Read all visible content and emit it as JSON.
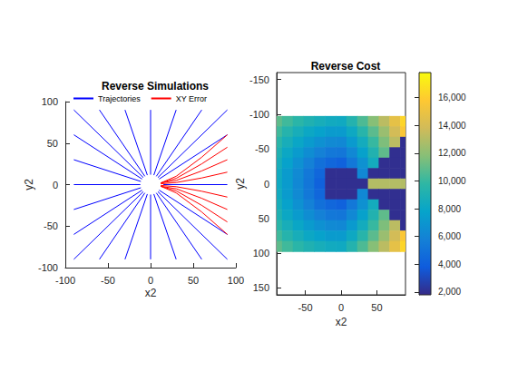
{
  "chart_data": [
    {
      "type": "line",
      "title": "Reverse Simulations",
      "x_label": "x2",
      "y_label": "y2",
      "xlim": [
        -100,
        100
      ],
      "xticks": [
        -100,
        -50,
        0,
        50,
        100
      ],
      "ylim": [
        -100,
        100
      ],
      "yticks": [
        -100,
        -50,
        0,
        50,
        100
      ],
      "legend": "top",
      "series": [
        {
          "name": "Trajectories",
          "color": "#0000ff",
          "paths": [
            [
              [
                -8.5,
                8.5
              ],
              [
                -90,
                90
              ]
            ],
            [
              [
                -6.7,
                10
              ],
              [
                -60,
                90
              ]
            ],
            [
              [
                -3.8,
                11.4
              ],
              [
                -30,
                90
              ]
            ],
            [
              [
                0,
                12
              ],
              [
                0,
                90
              ]
            ],
            [
              [
                3.8,
                11.4
              ],
              [
                30,
                90
              ]
            ],
            [
              [
                6.7,
                10
              ],
              [
                60,
                90
              ]
            ],
            [
              [
                8.5,
                8.5
              ],
              [
                90,
                90
              ]
            ],
            [
              [
                -10,
                6.7
              ],
              [
                -90,
                60
              ]
            ],
            [
              [
                -11.4,
                3.8
              ],
              [
                -90,
                30
              ]
            ],
            [
              [
                -12,
                0
              ],
              [
                -90,
                0
              ]
            ],
            [
              [
                -11.4,
                -3.8
              ],
              [
                -90,
                -30
              ]
            ],
            [
              [
                -10,
                -6.7
              ],
              [
                -90,
                -60
              ]
            ],
            [
              [
                -8.5,
                -8.5
              ],
              [
                -90,
                -90
              ]
            ],
            [
              [
                -6.7,
                -10
              ],
              [
                -60,
                -90
              ]
            ],
            [
              [
                -3.8,
                -11.4
              ],
              [
                -30,
                -90
              ]
            ],
            [
              [
                0,
                -12
              ],
              [
                0,
                -90
              ]
            ],
            [
              [
                3.8,
                -11.4
              ],
              [
                30,
                -90
              ]
            ],
            [
              [
                6.7,
                -10
              ],
              [
                60,
                -90
              ]
            ],
            [
              [
                8.5,
                -8.5
              ],
              [
                90,
                -90
              ]
            ],
            [
              [
                10,
                6.7
              ],
              [
                90,
                60
              ]
            ],
            [
              [
                10,
                -6.7
              ],
              [
                90,
                -60
              ]
            ],
            [
              [
                15,
                0
              ],
              [
                90,
                0
              ]
            ]
          ]
        },
        {
          "name": "XY Error",
          "color": "#ff0000",
          "paths": [
            [
              [
                12,
                -2
              ],
              [
                30,
                -10
              ],
              [
                60,
                -33
              ],
              [
                90,
                -60
              ]
            ],
            [
              [
                12,
                -2
              ],
              [
                30,
                -7.5
              ],
              [
                60,
                -25
              ],
              [
                90,
                -45
              ]
            ],
            [
              [
                12,
                -2
              ],
              [
                30,
                -5
              ],
              [
                60,
                -16.5
              ],
              [
                90,
                -30
              ]
            ],
            [
              [
                12,
                -1
              ],
              [
                30,
                -2.5
              ],
              [
                60,
                -8
              ],
              [
                90,
                -15
              ]
            ],
            [
              [
                12,
                1
              ],
              [
                30,
                2.5
              ],
              [
                60,
                8
              ],
              [
                90,
                15
              ]
            ],
            [
              [
                12,
                2
              ],
              [
                30,
                5
              ],
              [
                60,
                16.5
              ],
              [
                90,
                30
              ]
            ],
            [
              [
                12,
                2
              ],
              [
                30,
                7.5
              ],
              [
                60,
                25
              ],
              [
                90,
                45
              ]
            ],
            [
              [
                12,
                2
              ],
              [
                30,
                10
              ],
              [
                60,
                33
              ],
              [
                90,
                60
              ]
            ]
          ]
        }
      ]
    },
    {
      "type": "heatmap",
      "title": "Reverse Cost",
      "x_label": "x2",
      "y_label": "y2",
      "xlim": [
        -90,
        90
      ],
      "xticks": [
        -50,
        0,
        50
      ],
      "ylim": [
        160,
        -160
      ],
      "yticks": [
        -150,
        -100,
        -50,
        0,
        50,
        100,
        150
      ],
      "x": [
        -90,
        -75,
        -60,
        -45,
        -30,
        -15,
        0,
        15,
        30,
        45,
        60,
        75,
        90
      ],
      "y": [
        -90,
        -75,
        -60,
        -45,
        -30,
        -15,
        0,
        15,
        30,
        45,
        60,
        75,
        90
      ],
      "values": [
        [
          10900,
          10200,
          9600,
          9100,
          8700,
          8400,
          8300,
          9300,
          10500,
          11800,
          13200,
          14700,
          16300
        ],
        [
          10200,
          9400,
          8700,
          8100,
          7700,
          7300,
          7300,
          8200,
          9500,
          10800,
          12300,
          13900,
          15600
        ],
        [
          9600,
          8700,
          8000,
          7300,
          6700,
          6300,
          6200,
          7200,
          8500,
          10000,
          11600,
          13200,
          2000
        ],
        [
          9100,
          8100,
          7300,
          6500,
          5800,
          5300,
          5200,
          6200,
          7600,
          9200,
          10900,
          2000,
          2000
        ],
        [
          8700,
          7700,
          6700,
          5800,
          4900,
          4400,
          4100,
          5300,
          6700,
          8500,
          2000,
          2000,
          2000
        ],
        [
          8400,
          7300,
          6300,
          5300,
          4400,
          2000,
          2000,
          2000,
          6200,
          2000,
          2000,
          2000,
          2000
        ],
        [
          8300,
          7300,
          6200,
          5200,
          4100,
          2000,
          2000,
          2000,
          2000,
          13000,
          13000,
          13000,
          13000
        ],
        [
          8400,
          7300,
          6300,
          5300,
          4400,
          2000,
          2000,
          2000,
          6200,
          2000,
          2000,
          2000,
          2000
        ],
        [
          8700,
          7700,
          6700,
          5800,
          4900,
          4400,
          4100,
          5300,
          6700,
          8500,
          2000,
          2000,
          2000
        ],
        [
          9100,
          8100,
          7300,
          6500,
          5800,
          5300,
          5200,
          6200,
          7600,
          9200,
          10900,
          2000,
          2000
        ],
        [
          9600,
          8700,
          8000,
          7300,
          6700,
          6300,
          6200,
          7200,
          8500,
          10000,
          11600,
          13200,
          2000
        ],
        [
          10200,
          9400,
          8700,
          8100,
          7700,
          7300,
          7300,
          8200,
          9500,
          10800,
          12300,
          13900,
          15600
        ],
        [
          10900,
          10200,
          9600,
          9100,
          8700,
          8400,
          8300,
          9300,
          10500,
          11800,
          13200,
          14700,
          16300
        ]
      ],
      "colorbar_lim": [
        1800,
        17800
      ],
      "colorbar_ticks": [
        2000,
        4000,
        6000,
        8000,
        10000,
        12000,
        14000,
        16000
      ]
    }
  ]
}
